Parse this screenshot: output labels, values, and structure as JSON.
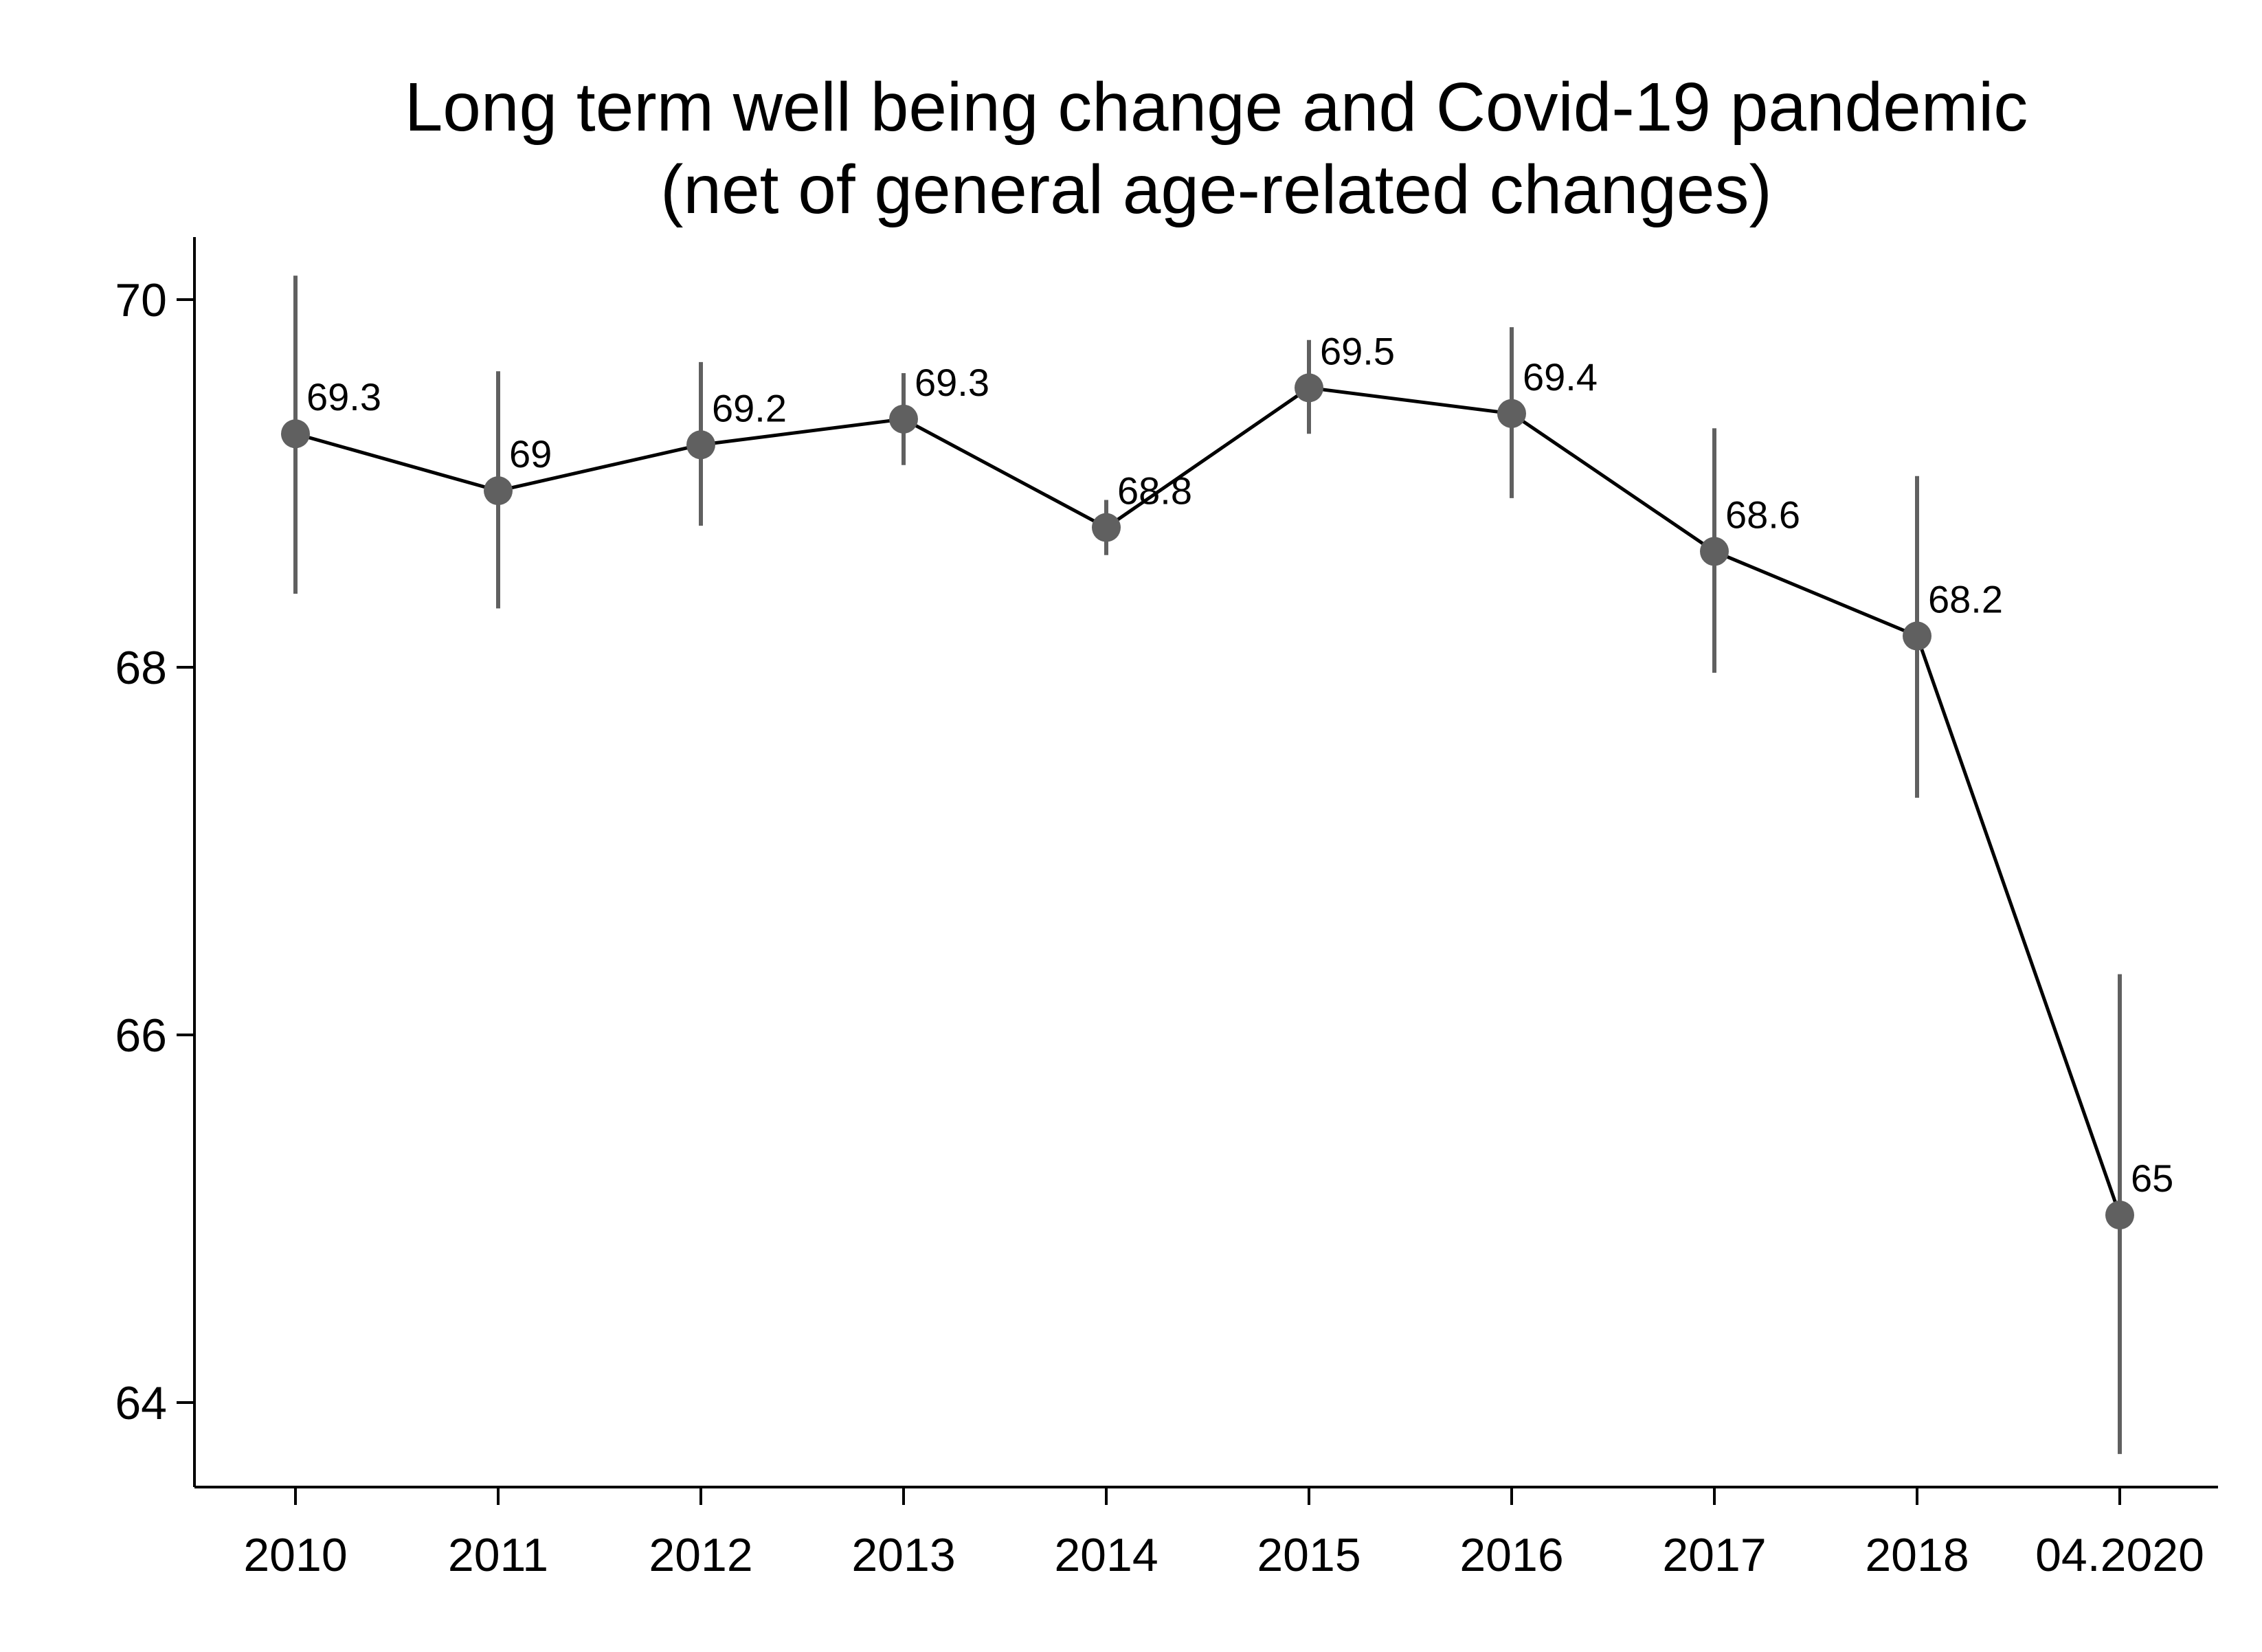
{
  "chart_data": {
    "type": "line",
    "title": [
      "Long term well being change and Covid-19 pandemic",
      "(net of general age-related changes)"
    ],
    "xlabel": "",
    "ylabel": "",
    "categories": [
      "2010",
      "2011",
      "2012",
      "2013",
      "2014",
      "2015",
      "2016",
      "2017",
      "2018",
      "04.2020"
    ],
    "values": [
      69.27,
      68.96,
      69.21,
      69.35,
      68.76,
      69.52,
      69.38,
      68.63,
      68.17,
      65.02
    ],
    "data_labels": [
      "69.3",
      "69",
      "69.2",
      "69.3",
      "68.8",
      "69.5",
      "69.4",
      "68.6",
      "68.2",
      "65"
    ],
    "ci_lower": [
      68.4,
      68.32,
      68.77,
      69.1,
      68.61,
      69.27,
      68.92,
      67.97,
      67.29,
      63.72
    ],
    "ci_upper": [
      70.13,
      69.61,
      69.66,
      69.6,
      68.91,
      69.78,
      69.85,
      69.3,
      69.04,
      66.33
    ],
    "yticks": [
      64,
      66,
      68,
      70
    ],
    "ylim": [
      63.54,
      70.34
    ],
    "grid": false,
    "legend": "none",
    "colors": {
      "line": "#000000",
      "marker": "#606060",
      "ci": "#606060",
      "axis": "#000000"
    }
  }
}
